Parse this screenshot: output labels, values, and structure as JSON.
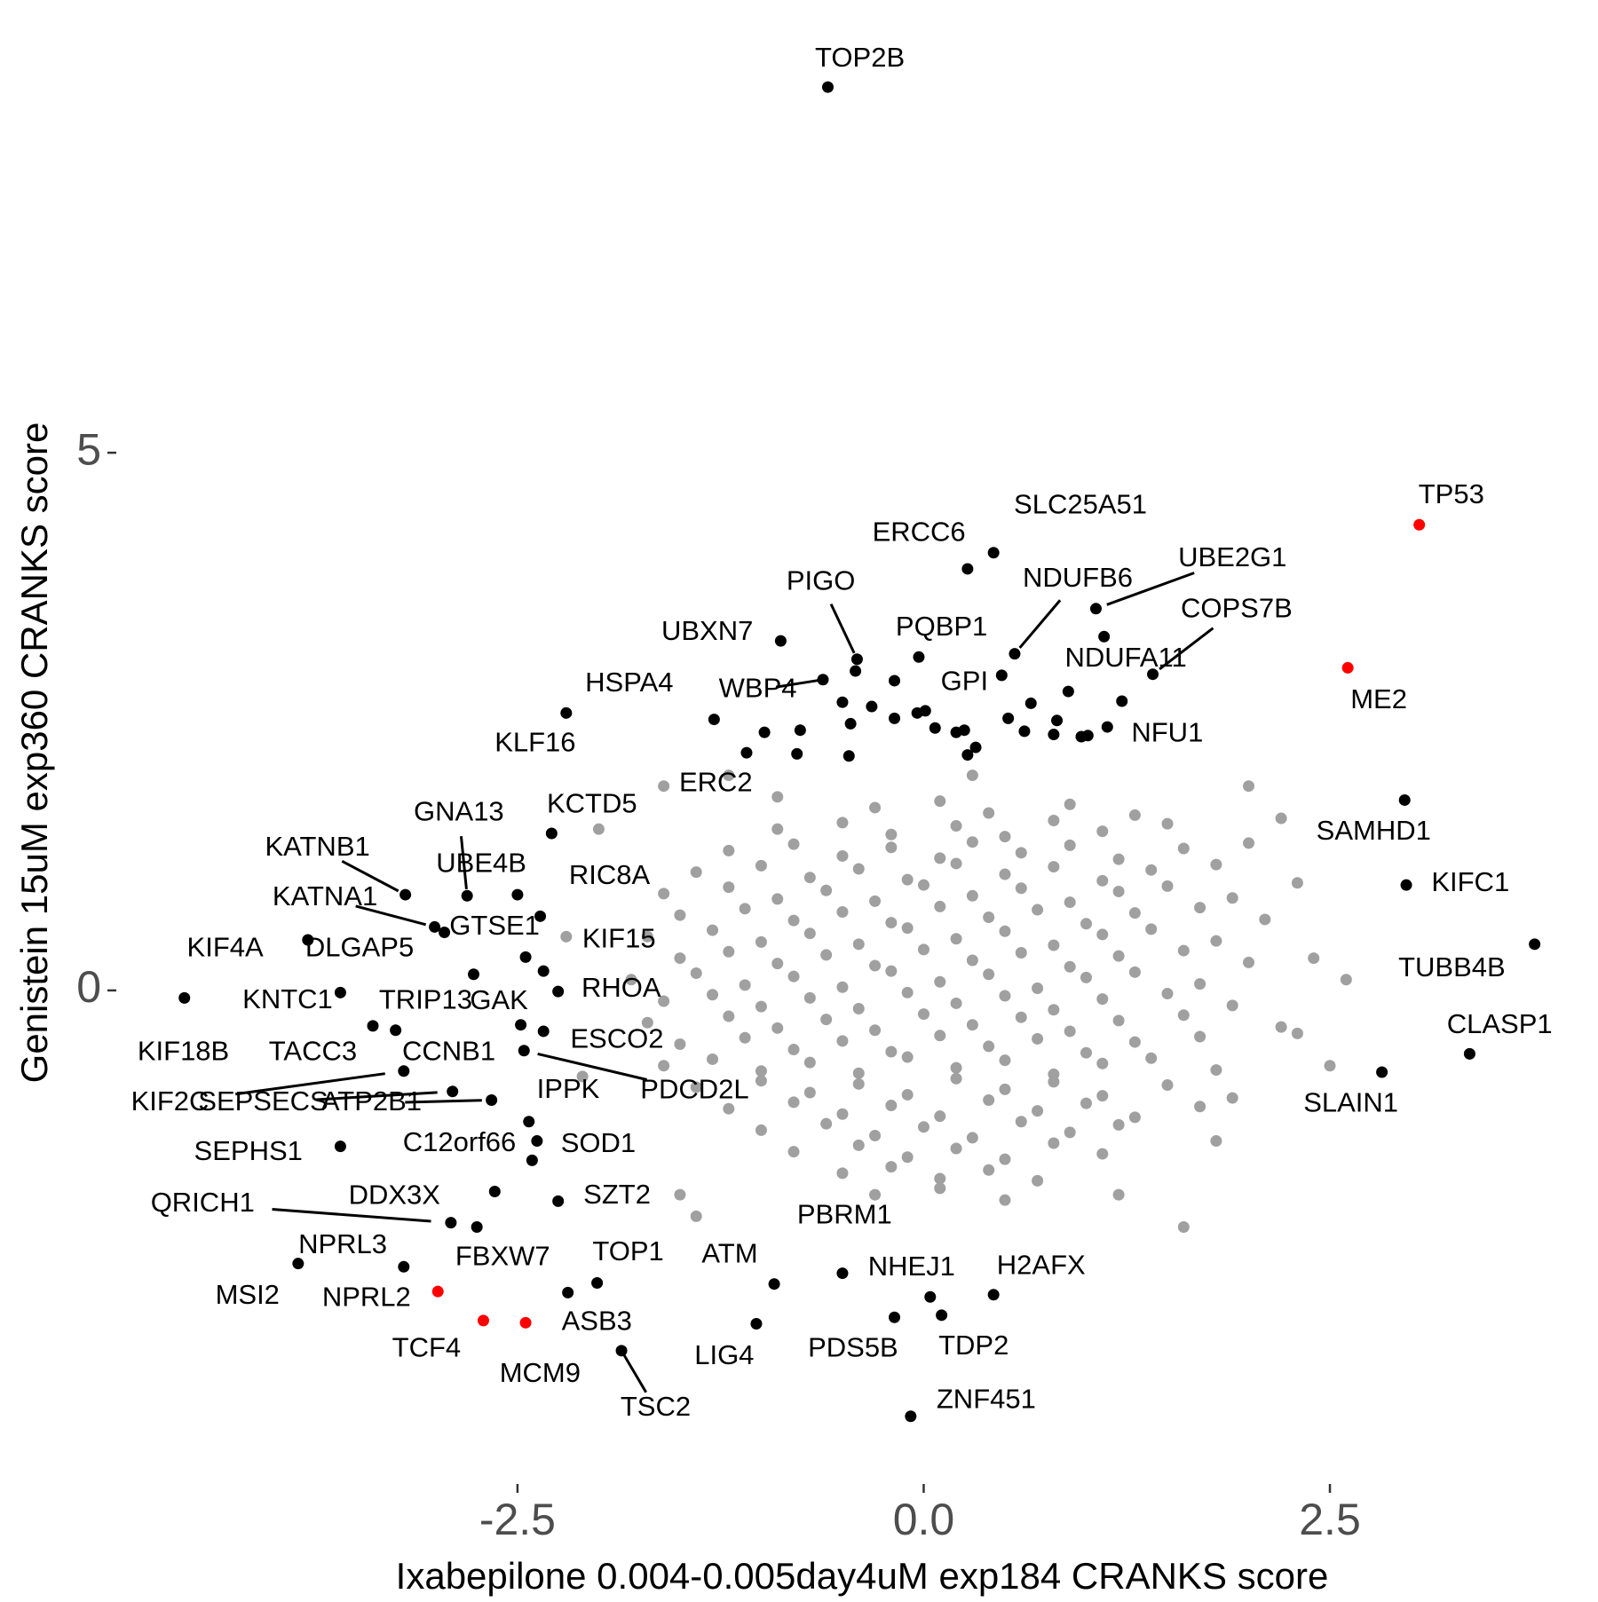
{
  "chart_data": {
    "type": "scatter",
    "xlabel": "Ixabepilone 0.004-0.005day4uM exp184 CRANKS score",
    "ylabel": "Genistein 15uM exp360 CRANKS score",
    "xlim": [
      -4.92,
      4.15
    ],
    "ylim": [
      -4.54,
      9.21
    ],
    "xticks": [
      -2.5,
      {
        "value": 0,
        "label": "0.0"
      },
      2.5
    ],
    "yticks": [
      0,
      5
    ],
    "grid": false,
    "series": [
      {
        "color": "#a0a0a0",
        "x": [
          -0.3,
          0.1,
          0.4,
          0.9,
          1.3,
          -0.9,
          -0.5,
          -0.2,
          0.2,
          0.5,
          0.8,
          1.1,
          1.5,
          -1.2,
          -0.8,
          -0.5,
          -0.2,
          0.1,
          0.3,
          0.6,
          0.9,
          1.2,
          1.6,
          2.0,
          -1.4,
          -1.0,
          -0.7,
          -0.4,
          -0.1,
          0.2,
          0.5,
          0.8,
          1.1,
          1.4,
          1.8,
          -1.6,
          -1.2,
          -0.9,
          -0.6,
          -0.3,
          0.0,
          0.3,
          0.6,
          0.9,
          1.2,
          1.5,
          1.9,
          -1.5,
          -1.1,
          -0.8,
          -0.5,
          -0.2,
          0.1,
          0.4,
          0.7,
          1.0,
          1.3,
          1.7,
          2.1,
          -1.7,
          -1.3,
          -1.0,
          -0.7,
          -0.4,
          -0.1,
          0.2,
          0.5,
          0.8,
          1.1,
          1.4,
          1.8,
          -1.5,
          -1.2,
          -0.9,
          -0.6,
          -0.3,
          0.0,
          0.3,
          0.6,
          0.9,
          1.2,
          1.6,
          2.0,
          -1.8,
          -1.4,
          -1.1,
          -0.8,
          -0.5,
          -0.2,
          0.1,
          0.4,
          0.7,
          1.0,
          1.3,
          1.7,
          -1.6,
          -1.3,
          -1.0,
          -0.7,
          -0.4,
          -0.1,
          0.2,
          0.5,
          0.8,
          1.1,
          1.5,
          1.9,
          -1.7,
          -1.2,
          -0.9,
          -0.6,
          -0.3,
          0.0,
          0.3,
          0.6,
          0.9,
          1.2,
          1.6,
          2.2,
          -1.5,
          -1.1,
          -0.8,
          -0.5,
          -0.2,
          0.1,
          0.4,
          0.7,
          1.0,
          1.3,
          1.7,
          -1.6,
          -1.3,
          -1.0,
          -0.7,
          -0.4,
          -0.1,
          0.2,
          0.5,
          0.8,
          1.1,
          1.4,
          1.8,
          -1.4,
          -1.0,
          -0.7,
          -0.4,
          -0.1,
          0.2,
          0.5,
          0.8,
          1.1,
          1.5,
          -1.2,
          -0.8,
          -0.5,
          -0.2,
          0.1,
          0.4,
          0.7,
          1.0,
          1.3,
          1.7,
          -1.0,
          -0.6,
          -0.3,
          0.0,
          0.3,
          0.6,
          0.9,
          1.2,
          -0.8,
          -0.4,
          -0.1,
          0.2,
          0.5,
          0.8,
          1.1,
          -0.5,
          -0.2,
          0.1,
          0.4,
          0.7,
          -0.3,
          0.1,
          0.5,
          -2.0,
          -1.6,
          -2.2,
          -2.1,
          -1.5,
          -1.4,
          1.6,
          1.2,
          2.4,
          2.3,
          2.2,
          2.0,
          2.5,
          2.6,
          1.8,
          -1.2,
          0.3,
          -0.9,
          1.9,
          2.3
        ],
        "values": [
          1.7,
          1.76,
          1.65,
          1.73,
          1.63,
          1.5,
          1.56,
          1.45,
          1.53,
          1.43,
          1.58,
          1.48,
          1.55,
          1.3,
          1.36,
          1.25,
          1.33,
          1.23,
          1.38,
          1.28,
          1.35,
          1.22,
          1.32,
          1.37,
          1.1,
          1.16,
          1.05,
          1.13,
          1.03,
          1.18,
          1.08,
          1.15,
          1.02,
          1.12,
          1.17,
          0.9,
          0.96,
          0.85,
          0.93,
          0.83,
          0.98,
          0.88,
          0.95,
          0.82,
          0.92,
          0.97,
          0.86,
          0.7,
          0.76,
          0.65,
          0.73,
          0.63,
          0.78,
          0.68,
          0.75,
          0.62,
          0.72,
          0.77,
          0.66,
          0.5,
          0.56,
          0.45,
          0.53,
          0.43,
          0.58,
          0.48,
          0.55,
          0.42,
          0.52,
          0.57,
          0.46,
          0.3,
          0.36,
          0.25,
          0.33,
          0.23,
          0.38,
          0.28,
          0.35,
          0.22,
          0.32,
          0.37,
          0.26,
          0.1,
          0.16,
          0.05,
          0.13,
          0.03,
          0.18,
          0.08,
          0.15,
          0.02,
          0.12,
          0.17,
          0.06,
          -0.1,
          -0.04,
          -0.15,
          -0.07,
          -0.17,
          -0.02,
          -0.12,
          -0.05,
          -0.18,
          -0.08,
          -0.03,
          -0.14,
          -0.3,
          -0.24,
          -0.35,
          -0.27,
          -0.37,
          -0.22,
          -0.32,
          -0.25,
          -0.38,
          -0.28,
          -0.23,
          -0.34,
          -0.5,
          -0.44,
          -0.55,
          -0.47,
          -0.57,
          -0.42,
          -0.52,
          -0.45,
          -0.58,
          -0.48,
          -0.43,
          -0.7,
          -0.64,
          -0.75,
          -0.67,
          -0.77,
          -0.62,
          -0.72,
          -0.65,
          -0.78,
          -0.68,
          -0.63,
          -0.74,
          -0.9,
          -0.84,
          -0.95,
          -0.87,
          -0.97,
          -0.82,
          -0.92,
          -0.85,
          -0.98,
          -0.88,
          -1.1,
          -1.04,
          -1.15,
          -1.07,
          -1.17,
          -1.02,
          -1.12,
          -1.05,
          -1.18,
          -1.08,
          -1.3,
          -1.24,
          -1.35,
          -1.27,
          -1.37,
          -1.22,
          -1.32,
          -1.25,
          -1.5,
          -1.44,
          -1.55,
          -1.47,
          -1.57,
          -1.42,
          -1.52,
          -1.7,
          -1.64,
          -1.75,
          -1.67,
          -1.77,
          -1.9,
          -1.84,
          -1.95,
          1.5,
          1.9,
          0.5,
          -0.8,
          -1.9,
          -2.1,
          -2.2,
          -1.9,
          0.3,
          -0.4,
          1.6,
          1.9,
          -0.7,
          0.1,
          -1.4,
          2.0,
          2.0,
          1.8,
          -1.0,
          1.0
        ]
      },
      {
        "color": "#000000",
        "x": [
          -0.45,
          -0.32,
          -0.18,
          -0.04,
          0.01,
          0.07,
          0.2,
          0.25,
          0.52,
          0.66,
          0.62,
          0.8,
          0.82,
          0.97,
          0.89,
          -0.42,
          -0.18,
          -0.5,
          -0.76,
          -0.78,
          -0.46,
          0.27,
          0.32,
          -1.09,
          1.01,
          1.22
        ],
        "values": [
          2.48,
          2.64,
          2.53,
          2.58,
          2.6,
          2.44,
          2.4,
          2.42,
          2.53,
          2.67,
          2.41,
          2.38,
          2.51,
          2.36,
          2.78,
          2.97,
          2.88,
          2.68,
          2.42,
          2.2,
          2.18,
          2.19,
          2.26,
          2.21,
          2.37,
          2.69
        ]
      },
      {
        "color": "#000000",
        "labels": [
          "TOP2B",
          "SLC25A51",
          "ERCC6",
          "UBE2G1",
          "NDUFB6",
          "COPS7B",
          "NDUFA11",
          "PIGO",
          "PQBP1",
          "GPI",
          "UBXN7",
          "WBP4",
          "HSPA4",
          "KLF16",
          "NFU1",
          "ERC2",
          "KCTD5",
          "GNA13",
          "KATNB1",
          "UBE4B",
          "RIC8A",
          "KATNA1",
          "KIF4A",
          "DLGAP5",
          "GTSE1",
          "KIF15",
          "TRIP13",
          "GAK",
          "KNTC1",
          "TACC3",
          "KIF18B",
          "RHOA",
          "ESCO2",
          "CCNB1",
          "PDCD2L",
          "KIF2C",
          "SEPSECS",
          "ATP2B1",
          "IPPK",
          "SEPHS1",
          "C12orf66",
          "SOD1",
          "QRICH1",
          "DDX3X",
          "SZT2",
          "FBXW7",
          "NPRL3",
          "MSI2",
          "ASB3",
          "TOP1",
          "TSC2",
          "ATM",
          "LIG4",
          "PBRM1",
          "NHEJ1",
          "H2AFX",
          "PDS5B",
          "TDP2",
          "ZNF451",
          "SAMHD1",
          "KIFC1",
          "TUBB4B",
          "CLASP1",
          "SLAIN1"
        ],
        "x": [
          -0.59,
          0.43,
          0.27,
          1.06,
          0.56,
          1.41,
          1.11,
          -0.41,
          -0.03,
          0.48,
          -0.88,
          -0.62,
          -1.29,
          -2.2,
          1.13,
          -0.98,
          -2.29,
          -2.81,
          -3.19,
          -2.5,
          -2.36,
          -3.01,
          -3.79,
          -2.95,
          -2.45,
          -2.34,
          -3.25,
          -2.48,
          -3.59,
          -3.39,
          -4.55,
          -2.25,
          -2.34,
          -2.77,
          -2.46,
          -3.2,
          -2.9,
          -2.66,
          -2.43,
          -3.59,
          -2.38,
          -2.41,
          -2.91,
          -2.64,
          -2.25,
          -2.75,
          -3.2,
          -3.85,
          -2.19,
          -2.01,
          -1.86,
          -0.92,
          -1.03,
          -0.5,
          0.04,
          0.43,
          -0.18,
          0.11,
          -0.08,
          2.96,
          2.97,
          3.76,
          3.36,
          2.82
        ],
        "values": [
          8.4,
          4.07,
          3.92,
          3.55,
          3.13,
          2.94,
          3.29,
          3.08,
          3.1,
          2.93,
          3.25,
          2.89,
          2.52,
          2.58,
          2.45,
          2.4,
          1.46,
          0.88,
          0.89,
          0.89,
          0.69,
          0.59,
          0.47,
          0.54,
          0.31,
          0.18,
          -0.37,
          -0.32,
          -0.02,
          -0.33,
          -0.07,
          -0.01,
          -0.38,
          0.15,
          -0.56,
          -0.75,
          -0.94,
          -1.02,
          -1.22,
          -1.45,
          -1.4,
          -1.58,
          -2.16,
          -1.87,
          -1.96,
          -2.2,
          -2.57,
          -2.54,
          -2.81,
          -2.72,
          -3.35,
          -2.73,
          -3.1,
          -2.63,
          -2.85,
          -2.83,
          -3.04,
          -3.02,
          -3.96,
          1.77,
          0.98,
          0.43,
          -0.59,
          -0.76
        ]
      },
      {
        "color": "#ff0000",
        "labels": [
          "TP53",
          "ME2",
          "NPRL2",
          "TCF4",
          "MCM9"
        ],
        "x": [
          3.05,
          2.61,
          -2.99,
          -2.71,
          -2.45
        ],
        "values": [
          4.33,
          3.0,
          -2.8,
          -3.07,
          -3.09
        ]
      }
    ]
  }
}
